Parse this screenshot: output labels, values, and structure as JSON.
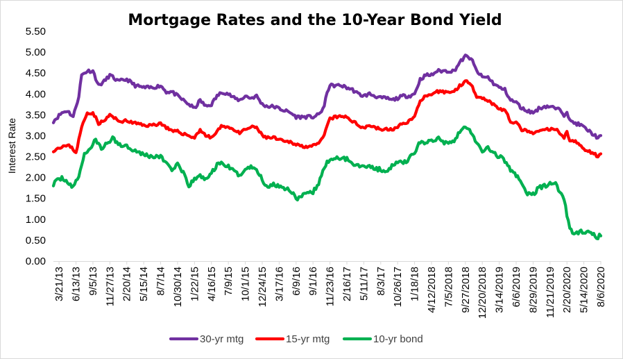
{
  "chart_data": {
    "type": "line",
    "title": "Mortgage Rates and the 10-Year Bond Yield",
    "xlabel": "",
    "ylabel": "Interest Rate",
    "ylim": [
      0,
      5.5
    ],
    "yticks": [
      "0.00",
      "0.50",
      "1.00",
      "1.50",
      "2.00",
      "2.50",
      "3.00",
      "3.50",
      "4.00",
      "4.50",
      "5.00",
      "5.50"
    ],
    "x_tick_labels": [
      "3/21/13",
      "6/13/13",
      "9/5/13",
      "11/27/13",
      "2/20/14",
      "5/15/14",
      "8/7/14",
      "10/30/14",
      "1/22/15",
      "4/16/15",
      "7/9/15",
      "10/1/15",
      "12/24/15",
      "3/17/16",
      "6/9/16",
      "9/1/16",
      "11/23/16",
      "2/16/17",
      "5/11/17",
      "8/3/17",
      "10/26/17",
      "1/18/18",
      "4/12/2018",
      "7/5/2018",
      "9/27/2018",
      "12/20/2018",
      "3/14/2019",
      "6/6/2019",
      "8/29/2019",
      "11/21/2019",
      "2/20/2020",
      "5/14/2020",
      "8/6/2020"
    ],
    "x_tick_index": [
      4,
      16,
      28,
      40,
      52,
      64,
      76,
      88,
      100,
      112,
      124,
      136,
      148,
      160,
      172,
      184,
      196,
      208,
      220,
      232,
      244,
      256,
      268,
      280,
      292,
      304,
      316,
      328,
      340,
      352,
      364,
      376,
      388
    ],
    "grid": false,
    "legend_position": "bottom",
    "anchors": {
      "30-yr mtg": [
        [
          0,
          3.35
        ],
        [
          6,
          3.55
        ],
        [
          10,
          3.6
        ],
        [
          14,
          3.45
        ],
        [
          18,
          3.95
        ],
        [
          20,
          4.45
        ],
        [
          24,
          4.55
        ],
        [
          28,
          4.55
        ],
        [
          32,
          4.2
        ],
        [
          36,
          4.3
        ],
        [
          40,
          4.45
        ],
        [
          46,
          4.3
        ],
        [
          52,
          4.35
        ],
        [
          58,
          4.2
        ],
        [
          64,
          4.15
        ],
        [
          70,
          4.15
        ],
        [
          76,
          4.2
        ],
        [
          80,
          4.05
        ],
        [
          84,
          4.05
        ],
        [
          88,
          3.95
        ],
        [
          92,
          3.85
        ],
        [
          96,
          3.75
        ],
        [
          100,
          3.65
        ],
        [
          104,
          3.85
        ],
        [
          108,
          3.7
        ],
        [
          112,
          3.75
        ],
        [
          116,
          3.95
        ],
        [
          120,
          4.05
        ],
        [
          124,
          4.0
        ],
        [
          128,
          3.9
        ],
        [
          132,
          3.85
        ],
        [
          136,
          3.95
        ],
        [
          140,
          3.9
        ],
        [
          144,
          3.95
        ],
        [
          148,
          3.75
        ],
        [
          152,
          3.7
        ],
        [
          156,
          3.7
        ],
        [
          160,
          3.65
        ],
        [
          164,
          3.6
        ],
        [
          168,
          3.55
        ],
        [
          172,
          3.45
        ],
        [
          176,
          3.45
        ],
        [
          180,
          3.45
        ],
        [
          184,
          3.45
        ],
        [
          188,
          3.5
        ],
        [
          192,
          3.7
        ],
        [
          194,
          4.05
        ],
        [
          196,
          4.2
        ],
        [
          200,
          4.2
        ],
        [
          204,
          4.2
        ],
        [
          208,
          4.15
        ],
        [
          212,
          4.1
        ],
        [
          216,
          4.0
        ],
        [
          220,
          3.95
        ],
        [
          224,
          4.0
        ],
        [
          228,
          3.95
        ],
        [
          232,
          3.9
        ],
        [
          236,
          3.9
        ],
        [
          240,
          3.85
        ],
        [
          244,
          3.9
        ],
        [
          248,
          3.95
        ],
        [
          252,
          3.95
        ],
        [
          256,
          4.0
        ],
        [
          260,
          4.35
        ],
        [
          264,
          4.45
        ],
        [
          268,
          4.45
        ],
        [
          272,
          4.55
        ],
        [
          276,
          4.55
        ],
        [
          280,
          4.55
        ],
        [
          284,
          4.55
        ],
        [
          288,
          4.75
        ],
        [
          292,
          4.9
        ],
        [
          296,
          4.85
        ],
        [
          300,
          4.55
        ],
        [
          304,
          4.4
        ],
        [
          308,
          4.4
        ],
        [
          312,
          4.25
        ],
        [
          316,
          4.15
        ],
        [
          320,
          4.1
        ],
        [
          324,
          3.85
        ],
        [
          328,
          3.8
        ],
        [
          332,
          3.65
        ],
        [
          336,
          3.6
        ],
        [
          340,
          3.55
        ],
        [
          344,
          3.65
        ],
        [
          348,
          3.7
        ],
        [
          352,
          3.7
        ],
        [
          356,
          3.65
        ],
        [
          360,
          3.6
        ],
        [
          362,
          3.5
        ],
        [
          364,
          3.6
        ],
        [
          366,
          3.35
        ],
        [
          370,
          3.3
        ],
        [
          374,
          3.25
        ],
        [
          378,
          3.15
        ],
        [
          382,
          3.05
        ],
        [
          386,
          2.95
        ],
        [
          388,
          2.98
        ]
      ],
      "15-yr mtg": [
        [
          0,
          2.65
        ],
        [
          6,
          2.75
        ],
        [
          12,
          2.75
        ],
        [
          16,
          2.6
        ],
        [
          20,
          3.2
        ],
        [
          24,
          3.55
        ],
        [
          28,
          3.55
        ],
        [
          32,
          3.3
        ],
        [
          36,
          3.35
        ],
        [
          40,
          3.5
        ],
        [
          46,
          3.35
        ],
        [
          52,
          3.35
        ],
        [
          58,
          3.3
        ],
        [
          64,
          3.25
        ],
        [
          70,
          3.25
        ],
        [
          76,
          3.3
        ],
        [
          80,
          3.2
        ],
        [
          84,
          3.1
        ],
        [
          88,
          3.1
        ],
        [
          92,
          3.05
        ],
        [
          96,
          3.0
        ],
        [
          100,
          2.95
        ],
        [
          104,
          3.15
        ],
        [
          108,
          3.0
        ],
        [
          112,
          2.95
        ],
        [
          116,
          3.1
        ],
        [
          120,
          3.25
        ],
        [
          124,
          3.2
        ],
        [
          128,
          3.15
        ],
        [
          132,
          3.05
        ],
        [
          136,
          3.15
        ],
        [
          140,
          3.2
        ],
        [
          144,
          3.2
        ],
        [
          148,
          3.0
        ],
        [
          152,
          2.95
        ],
        [
          156,
          2.95
        ],
        [
          160,
          2.9
        ],
        [
          164,
          2.85
        ],
        [
          168,
          2.85
        ],
        [
          172,
          2.8
        ],
        [
          176,
          2.75
        ],
        [
          180,
          2.75
        ],
        [
          184,
          2.75
        ],
        [
          188,
          2.8
        ],
        [
          192,
          3.0
        ],
        [
          194,
          3.25
        ],
        [
          196,
          3.4
        ],
        [
          200,
          3.45
        ],
        [
          204,
          3.45
        ],
        [
          208,
          3.45
        ],
        [
          212,
          3.35
        ],
        [
          216,
          3.25
        ],
        [
          220,
          3.2
        ],
        [
          224,
          3.25
        ],
        [
          228,
          3.2
        ],
        [
          232,
          3.15
        ],
        [
          236,
          3.15
        ],
        [
          240,
          3.15
        ],
        [
          244,
          3.2
        ],
        [
          248,
          3.3
        ],
        [
          252,
          3.35
        ],
        [
          256,
          3.45
        ],
        [
          260,
          3.85
        ],
        [
          264,
          3.95
        ],
        [
          268,
          3.95
        ],
        [
          272,
          4.05
        ],
        [
          276,
          4.05
        ],
        [
          280,
          4.05
        ],
        [
          284,
          4.05
        ],
        [
          288,
          4.2
        ],
        [
          292,
          4.3
        ],
        [
          296,
          4.25
        ],
        [
          300,
          3.95
        ],
        [
          304,
          3.9
        ],
        [
          308,
          3.85
        ],
        [
          312,
          3.75
        ],
        [
          316,
          3.65
        ],
        [
          320,
          3.6
        ],
        [
          324,
          3.35
        ],
        [
          328,
          3.3
        ],
        [
          332,
          3.15
        ],
        [
          336,
          3.1
        ],
        [
          340,
          3.05
        ],
        [
          344,
          3.1
        ],
        [
          348,
          3.15
        ],
        [
          352,
          3.15
        ],
        [
          356,
          3.15
        ],
        [
          360,
          3.05
        ],
        [
          362,
          2.95
        ],
        [
          364,
          3.1
        ],
        [
          366,
          2.9
        ],
        [
          370,
          2.85
        ],
        [
          374,
          2.75
        ],
        [
          378,
          2.65
        ],
        [
          382,
          2.6
        ],
        [
          386,
          2.5
        ],
        [
          388,
          2.55
        ]
      ],
      "10-yr bond": [
        [
          0,
          1.85
        ],
        [
          6,
          2.0
        ],
        [
          10,
          1.9
        ],
        [
          14,
          1.75
        ],
        [
          18,
          2.05
        ],
        [
          22,
          2.55
        ],
        [
          26,
          2.7
        ],
        [
          30,
          2.9
        ],
        [
          34,
          2.7
        ],
        [
          38,
          2.8
        ],
        [
          42,
          2.95
        ],
        [
          46,
          2.8
        ],
        [
          52,
          2.75
        ],
        [
          58,
          2.65
        ],
        [
          64,
          2.55
        ],
        [
          70,
          2.5
        ],
        [
          76,
          2.5
        ],
        [
          80,
          2.35
        ],
        [
          84,
          2.2
        ],
        [
          88,
          2.3
        ],
        [
          92,
          2.1
        ],
        [
          96,
          1.8
        ],
        [
          100,
          1.95
        ],
        [
          104,
          2.05
        ],
        [
          108,
          1.95
        ],
        [
          112,
          2.1
        ],
        [
          116,
          2.3
        ],
        [
          120,
          2.35
        ],
        [
          124,
          2.25
        ],
        [
          128,
          2.15
        ],
        [
          132,
          2.05
        ],
        [
          136,
          2.2
        ],
        [
          140,
          2.25
        ],
        [
          144,
          2.2
        ],
        [
          148,
          1.95
        ],
        [
          152,
          1.75
        ],
        [
          156,
          1.85
        ],
        [
          160,
          1.8
        ],
        [
          164,
          1.75
        ],
        [
          168,
          1.7
        ],
        [
          172,
          1.5
        ],
        [
          176,
          1.55
        ],
        [
          180,
          1.6
        ],
        [
          184,
          1.65
        ],
        [
          188,
          1.85
        ],
        [
          192,
          2.25
        ],
        [
          196,
          2.45
        ],
        [
          200,
          2.45
        ],
        [
          204,
          2.45
        ],
        [
          208,
          2.45
        ],
        [
          212,
          2.35
        ],
        [
          216,
          2.3
        ],
        [
          220,
          2.25
        ],
        [
          224,
          2.3
        ],
        [
          228,
          2.2
        ],
        [
          232,
          2.2
        ],
        [
          236,
          2.1
        ],
        [
          240,
          2.3
        ],
        [
          244,
          2.35
        ],
        [
          248,
          2.35
        ],
        [
          252,
          2.45
        ],
        [
          256,
          2.6
        ],
        [
          260,
          2.85
        ],
        [
          264,
          2.85
        ],
        [
          268,
          2.85
        ],
        [
          272,
          2.95
        ],
        [
          276,
          2.85
        ],
        [
          280,
          2.85
        ],
        [
          284,
          2.9
        ],
        [
          288,
          3.1
        ],
        [
          292,
          3.2
        ],
        [
          296,
          3.1
        ],
        [
          300,
          2.8
        ],
        [
          304,
          2.65
        ],
        [
          308,
          2.7
        ],
        [
          312,
          2.6
        ],
        [
          316,
          2.5
        ],
        [
          320,
          2.4
        ],
        [
          324,
          2.2
        ],
        [
          328,
          2.05
        ],
        [
          332,
          1.85
        ],
        [
          336,
          1.6
        ],
        [
          340,
          1.6
        ],
        [
          344,
          1.75
        ],
        [
          348,
          1.8
        ],
        [
          352,
          1.85
        ],
        [
          356,
          1.85
        ],
        [
          360,
          1.6
        ],
        [
          362,
          1.5
        ],
        [
          364,
          1.1
        ],
        [
          366,
          0.75
        ],
        [
          370,
          0.65
        ],
        [
          374,
          0.7
        ],
        [
          378,
          0.7
        ],
        [
          382,
          0.65
        ],
        [
          386,
          0.55
        ],
        [
          388,
          0.65
        ]
      ]
    },
    "series": [
      {
        "name": "30-yr mtg",
        "color": "#7030a0"
      },
      {
        "name": "15-yr mtg",
        "color": "#ff0000"
      },
      {
        "name": "10-yr bond",
        "color": "#00b050"
      }
    ]
  }
}
